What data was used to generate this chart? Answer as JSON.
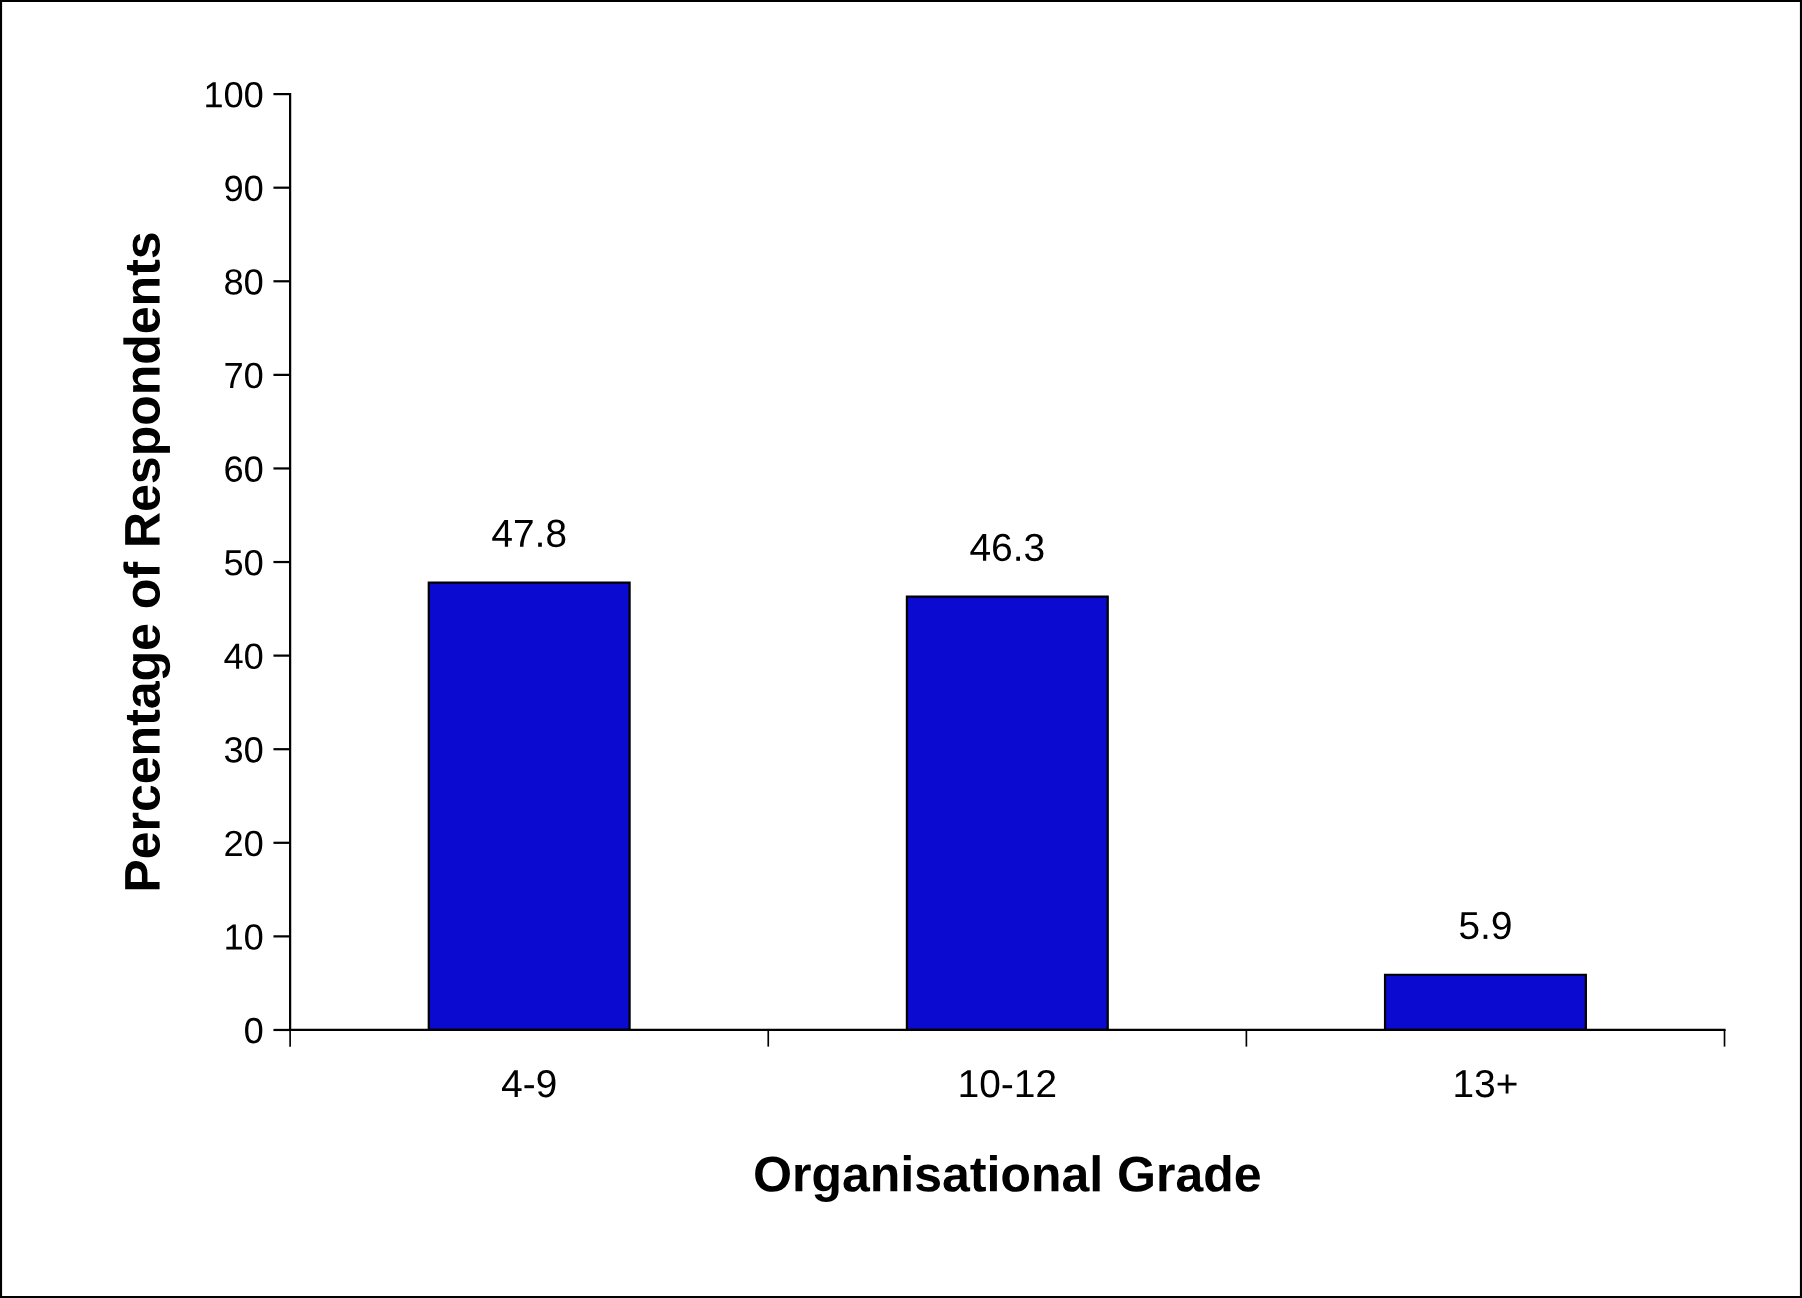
{
  "chart_data": {
    "type": "bar",
    "xlabel": "Organisational Grade",
    "ylabel": "Percentage of Respondents",
    "categories": [
      "4-9",
      "10-12",
      "13+"
    ],
    "values": [
      47.8,
      46.3,
      5.9
    ],
    "color": "#0a0ad0",
    "ylim": [
      0,
      100
    ],
    "yticks": [
      0,
      10,
      20,
      30,
      40,
      50,
      60,
      70,
      80,
      90,
      100
    ],
    "grid": false,
    "data_labels": true
  }
}
